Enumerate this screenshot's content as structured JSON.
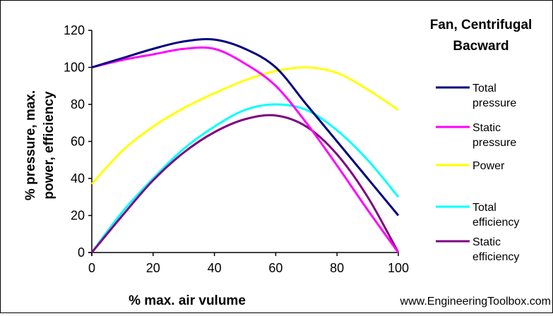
{
  "chart_data": {
    "type": "line",
    "title_lines": [
      "Fan, Centrifugal",
      "Bacward"
    ],
    "xlabel": "% max. air vulume",
    "ylabel_lines": [
      "% pressure, max.",
      "power, efficiency"
    ],
    "xlim": [
      0,
      100
    ],
    "ylim": [
      0,
      120
    ],
    "xticks": [
      "0",
      "20",
      "40",
      "60",
      "80",
      "100"
    ],
    "yticks": [
      "0",
      "20",
      "40",
      "60",
      "80",
      "100",
      "120"
    ],
    "grid": false,
    "legend_placement": "right",
    "series": [
      {
        "name_lines": [
          "Total",
          "pressure"
        ],
        "color": "#000080",
        "x": [
          0,
          10,
          20,
          30,
          40,
          50,
          60,
          70,
          80,
          90,
          100
        ],
        "y": [
          100,
          105,
          110,
          114,
          115,
          110,
          100,
          80,
          60,
          40,
          20
        ]
      },
      {
        "name_lines": [
          "Static",
          "pressure"
        ],
        "color": "#ff00ff",
        "x": [
          0,
          10,
          20,
          30,
          40,
          50,
          60,
          70,
          80,
          90,
          100
        ],
        "y": [
          100,
          104,
          107,
          110,
          110,
          102,
          90,
          70,
          47,
          23,
          0
        ]
      },
      {
        "name_lines": [
          "Power"
        ],
        "color": "#ffff00",
        "x": [
          0,
          10,
          20,
          30,
          40,
          50,
          60,
          70,
          80,
          90,
          100
        ],
        "y": [
          37,
          55,
          68,
          78,
          86,
          93,
          98,
          100,
          97,
          88,
          77
        ]
      },
      {
        "name_lines": [
          "Total",
          "efficiency"
        ],
        "color": "#00ffff",
        "x": [
          0,
          10,
          20,
          30,
          40,
          50,
          60,
          70,
          80,
          90,
          100
        ],
        "y": [
          0,
          22,
          40,
          56,
          68,
          77,
          80,
          77,
          66,
          50,
          30
        ]
      },
      {
        "name_lines": [
          "Static",
          "efficiency"
        ],
        "color": "#800080",
        "x": [
          0,
          10,
          20,
          30,
          40,
          50,
          60,
          70,
          80,
          90,
          100
        ],
        "y": [
          0,
          20,
          39,
          54,
          65,
          72,
          74,
          68,
          53,
          30,
          0
        ]
      }
    ],
    "source": "www.EngineeringToolbox.com"
  }
}
